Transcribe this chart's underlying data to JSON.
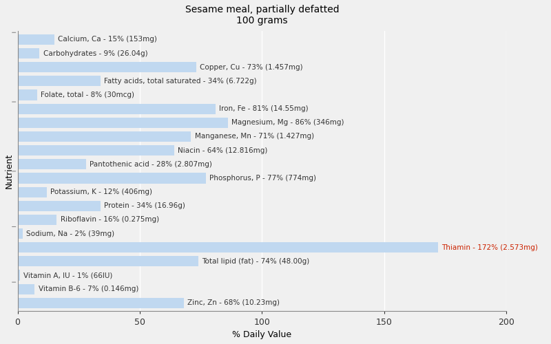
{
  "title": "Sesame meal, partially defatted\n100 grams",
  "xlabel": "% Daily Value",
  "ylabel": "Nutrient",
  "background_color": "#f0f0f0",
  "plot_bg_color": "#f0f0f0",
  "bar_color": "#c0d8f0",
  "bar_edge_color": "#c0d8f0",
  "xlim": [
    0,
    200
  ],
  "xticks": [
    0,
    50,
    100,
    150,
    200
  ],
  "nutrients": [
    {
      "label": "Calcium, Ca - 15% (153mg)",
      "value": 15
    },
    {
      "label": "Carbohydrates - 9% (26.04g)",
      "value": 9
    },
    {
      "label": "Copper, Cu - 73% (1.457mg)",
      "value": 73
    },
    {
      "label": "Fatty acids, total saturated - 34% (6.722g)",
      "value": 34
    },
    {
      "label": "Folate, total - 8% (30mcg)",
      "value": 8
    },
    {
      "label": "Iron, Fe - 81% (14.55mg)",
      "value": 81
    },
    {
      "label": "Magnesium, Mg - 86% (346mg)",
      "value": 86
    },
    {
      "label": "Manganese, Mn - 71% (1.427mg)",
      "value": 71
    },
    {
      "label": "Niacin - 64% (12.816mg)",
      "value": 64
    },
    {
      "label": "Pantothenic acid - 28% (2.807mg)",
      "value": 28
    },
    {
      "label": "Phosphorus, P - 77% (774mg)",
      "value": 77
    },
    {
      "label": "Potassium, K - 12% (406mg)",
      "value": 12
    },
    {
      "label": "Protein - 34% (16.96g)",
      "value": 34
    },
    {
      "label": "Riboflavin - 16% (0.275mg)",
      "value": 16
    },
    {
      "label": "Sodium, Na - 2% (39mg)",
      "value": 2
    },
    {
      "label": "Thiamin - 172% (2.573mg)",
      "value": 172
    },
    {
      "label": "Total lipid (fat) - 74% (48.00g)",
      "value": 74
    },
    {
      "label": "Vitamin A, IU - 1% (66IU)",
      "value": 1
    },
    {
      "label": "Vitamin B-6 - 7% (0.146mg)",
      "value": 7
    },
    {
      "label": "Zinc, Zn - 68% (10.23mg)",
      "value": 68
    }
  ],
  "title_fontsize": 10,
  "label_fontsize": 7.5,
  "tick_fontsize": 9,
  "axis_label_fontsize": 9,
  "default_label_color": "#333333",
  "thiamin_label_color": "#cc2200",
  "grid_color": "#ffffff",
  "spine_color": "#888888",
  "left_tick_positions": [
    19.5,
    14.5,
    9.5,
    5.5,
    1.5
  ],
  "bar_height": 0.75
}
